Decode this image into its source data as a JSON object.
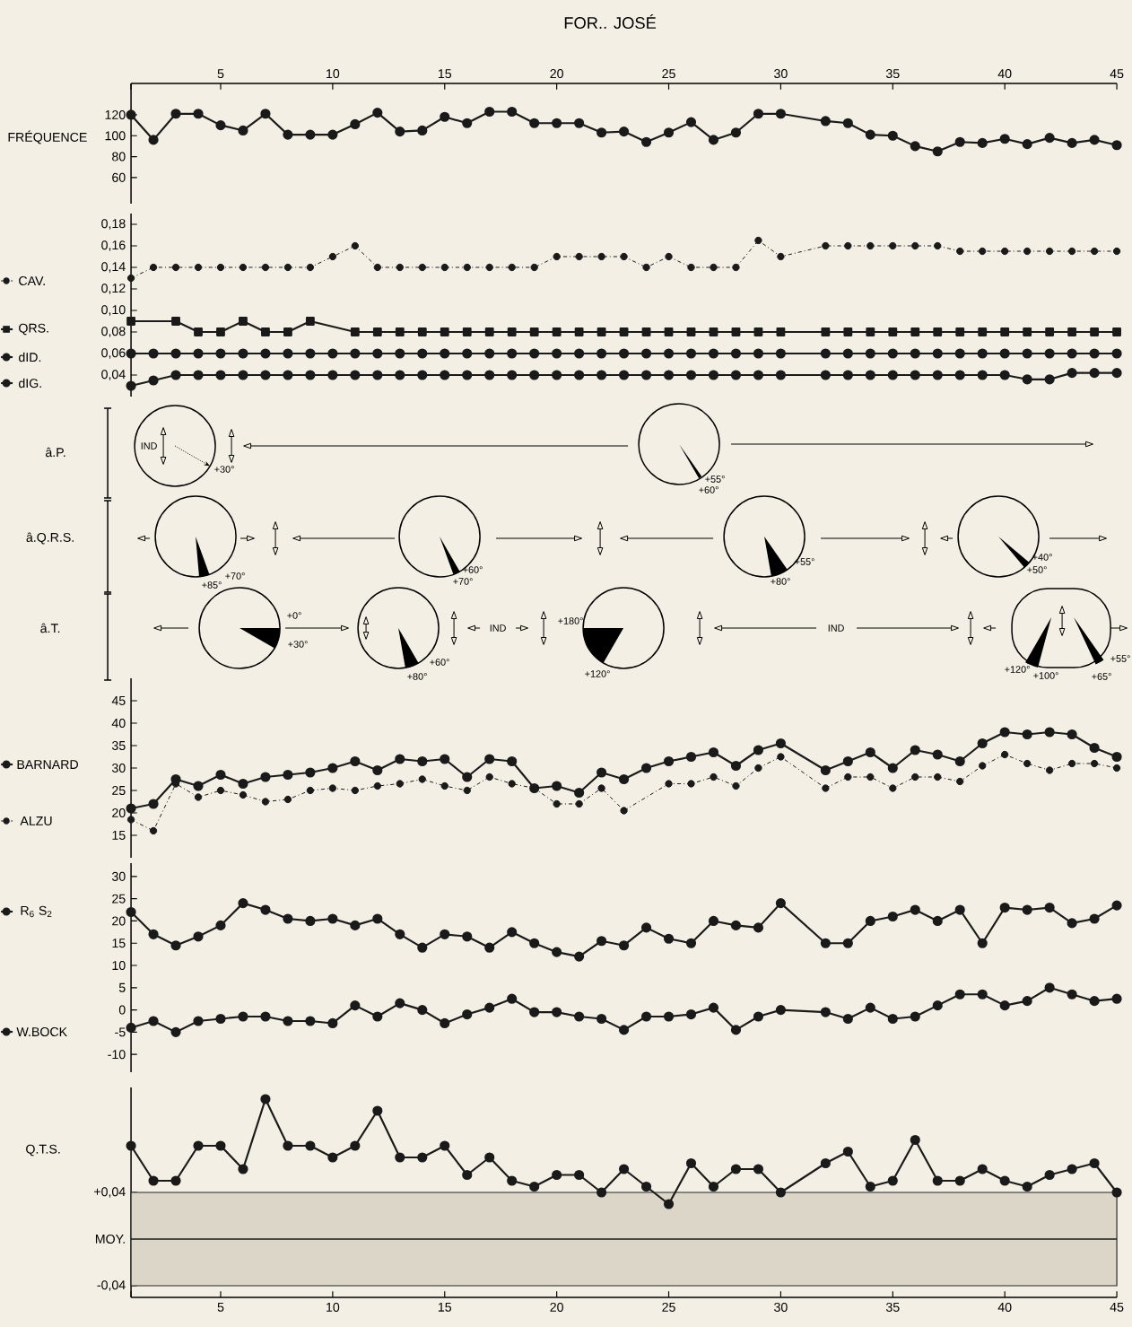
{
  "chart_data": [
    {
      "type": "line",
      "title": "FOR.. JOSÉ",
      "xlim": [
        1,
        45
      ],
      "xticks": [
        {
          "value": 1,
          "label": null
        },
        5,
        10,
        15,
        20,
        25,
        30,
        35,
        40,
        45
      ],
      "ylim": [
        35,
        150
      ],
      "yticks": [
        60,
        80,
        100,
        120
      ],
      "marker": "circle",
      "series": [
        {
          "name": "FRÉQUENCE",
          "color": "#1a1a1a",
          "x": [
            1,
            2,
            3,
            4,
            5,
            6,
            7,
            8,
            9,
            10,
            11,
            12,
            13,
            14,
            15,
            16,
            17,
            18,
            19,
            20,
            21,
            22,
            23,
            24,
            25,
            26,
            27,
            28,
            29,
            30,
            32,
            33,
            34,
            35,
            36,
            37,
            38,
            39,
            40,
            41,
            42,
            43,
            44,
            45
          ],
          "values": [
            120,
            96,
            121,
            121,
            110,
            105,
            121,
            101,
            101,
            101,
            111,
            122,
            104,
            105,
            118,
            112,
            123,
            123,
            112,
            112,
            112,
            103,
            104,
            94,
            103,
            113,
            96,
            103,
            121,
            121,
            114,
            112,
            101,
            100,
            90,
            85,
            94,
            93,
            97,
            92,
            98,
            93,
            96,
            91
          ]
        }
      ]
    },
    {
      "type": "line",
      "xlim": [
        1,
        45
      ],
      "tick_labels": "y",
      "legend": "left",
      "ylim": [
        0.02,
        0.19
      ],
      "yticks": [
        {
          "value": 0.04,
          "label": "0,04"
        },
        {
          "value": 0.06,
          "label": "0,06"
        },
        {
          "value": 0.08,
          "label": "0,08"
        },
        {
          "value": 0.1,
          "label": "0,10"
        },
        {
          "value": 0.12,
          "label": "0,12"
        },
        {
          "value": 0.14,
          "label": "0,14"
        },
        {
          "value": 0.16,
          "label": "0,16"
        },
        {
          "value": 0.18,
          "label": "0,18"
        }
      ],
      "marker": "circle",
      "series": [
        {
          "name": "CAV.",
          "color": "#1a1a1a",
          "line_style": "dotted",
          "x": [
            1,
            2,
            3,
            4,
            5,
            6,
            7,
            8,
            9,
            10,
            11,
            12,
            13,
            14,
            15,
            16,
            17,
            18,
            19,
            20,
            21,
            22,
            23,
            24,
            25,
            26,
            27,
            28,
            29,
            30,
            32,
            33,
            34,
            35,
            36,
            37,
            38,
            39,
            40,
            41,
            42,
            43,
            44,
            45
          ],
          "values": [
            0.13,
            0.14,
            0.14,
            0.14,
            0.14,
            0.14,
            0.14,
            0.14,
            0.14,
            0.15,
            0.16,
            0.14,
            0.14,
            0.14,
            0.14,
            0.14,
            0.14,
            0.14,
            0.14,
            0.15,
            0.15,
            0.15,
            0.15,
            0.14,
            0.15,
            0.14,
            0.14,
            0.14,
            0.165,
            0.15,
            0.16,
            0.16,
            0.16,
            0.16,
            0.16,
            0.16,
            0.155,
            0.155,
            0.155,
            0.155,
            0.155,
            0.155,
            0.155,
            0.155
          ]
        },
        {
          "name": "QRS.",
          "color": "#1a1a1a",
          "marker": "square",
          "x": [
            1,
            3,
            4,
            5,
            6,
            7,
            8,
            9,
            11,
            12,
            13,
            14,
            15,
            16,
            17,
            18,
            19,
            20,
            21,
            22,
            23,
            24,
            25,
            26,
            27,
            28,
            29,
            30,
            32,
            33,
            34,
            35,
            36,
            37,
            38,
            39,
            40,
            41,
            42,
            43,
            44,
            45
          ],
          "values": [
            0.09,
            0.09,
            0.08,
            0.08,
            0.09,
            0.08,
            0.08,
            0.09,
            0.08,
            0.08,
            0.08,
            0.08,
            0.08,
            0.08,
            0.08,
            0.08,
            0.08,
            0.08,
            0.08,
            0.08,
            0.08,
            0.08,
            0.08,
            0.08,
            0.08,
            0.08,
            0.08,
            0.08,
            0.08,
            0.08,
            0.08,
            0.08,
            0.08,
            0.08,
            0.08,
            0.08,
            0.08,
            0.08,
            0.08,
            0.08,
            0.08,
            0.08
          ]
        },
        {
          "name": "dID.",
          "color": "#1a1a1a",
          "x": [
            1,
            2,
            3,
            4,
            5,
            6,
            7,
            8,
            9,
            10,
            11,
            12,
            13,
            14,
            15,
            16,
            17,
            18,
            19,
            20,
            21,
            22,
            23,
            24,
            25,
            26,
            27,
            28,
            29,
            30,
            32,
            33,
            34,
            35,
            36,
            37,
            38,
            39,
            40,
            41,
            42,
            43,
            44,
            45
          ],
          "values": [
            0.06,
            0.06,
            0.06,
            0.06,
            0.06,
            0.06,
            0.06,
            0.06,
            0.06,
            0.06,
            0.06,
            0.06,
            0.06,
            0.06,
            0.06,
            0.06,
            0.06,
            0.06,
            0.06,
            0.06,
            0.06,
            0.06,
            0.06,
            0.06,
            0.06,
            0.06,
            0.06,
            0.06,
            0.06,
            0.06,
            0.06,
            0.06,
            0.06,
            0.06,
            0.06,
            0.06,
            0.06,
            0.06,
            0.06,
            0.06,
            0.06,
            0.06,
            0.06,
            0.06
          ]
        },
        {
          "name": "dIG.",
          "color": "#1a1a1a",
          "x": [
            1,
            2,
            3,
            4,
            5,
            6,
            7,
            8,
            9,
            10,
            11,
            12,
            13,
            14,
            15,
            16,
            17,
            18,
            19,
            20,
            21,
            22,
            23,
            24,
            25,
            26,
            27,
            28,
            29,
            30,
            32,
            33,
            34,
            35,
            36,
            37,
            38,
            39,
            40,
            41,
            42,
            43,
            44,
            45
          ],
          "values": [
            0.03,
            0.035,
            0.04,
            0.04,
            0.04,
            0.04,
            0.04,
            0.04,
            0.04,
            0.04,
            0.04,
            0.04,
            0.04,
            0.04,
            0.04,
            0.04,
            0.04,
            0.04,
            0.04,
            0.04,
            0.04,
            0.04,
            0.04,
            0.04,
            0.04,
            0.04,
            0.04,
            0.04,
            0.04,
            0.04,
            0.04,
            0.04,
            0.04,
            0.04,
            0.04,
            0.04,
            0.04,
            0.04,
            0.04,
            0.036,
            0.036,
            0.042,
            0.042,
            0.042
          ]
        }
      ]
    },
    {
      "type": "other",
      "ylabel": "â.P.",
      "annotations": [
        "IND",
        "+30°",
        "+55°",
        "+60°"
      ]
    },
    {
      "type": "other",
      "ylabel": "â.Q.R.S.",
      "annotations": [
        "+70°",
        "+85°",
        "+60°",
        "+70°",
        "+55°",
        "+80°",
        "+40°",
        "+50°"
      ]
    },
    {
      "type": "other",
      "ylabel": "â.T.",
      "annotations": [
        "+0°",
        "+30°",
        "+60°",
        "+80°",
        "IND",
        "+180°",
        "+120°",
        "IND",
        "+120°",
        "+100°",
        "+55°",
        "+65°"
      ]
    },
    {
      "type": "line",
      "xlim": [
        1,
        45
      ],
      "tick_labels": "y",
      "legend": "left",
      "ylim": [
        10,
        50
      ],
      "yticks": [
        15,
        20,
        25,
        30,
        35,
        40,
        45
      ],
      "marker": "circle",
      "series": [
        {
          "name": "BARNARD",
          "color": "#1a1a1a",
          "x": [
            1,
            2,
            3,
            4,
            5,
            6,
            7,
            8,
            9,
            10,
            11,
            12,
            13,
            14,
            15,
            16,
            17,
            18,
            19,
            20,
            21,
            22,
            23,
            24,
            25,
            26,
            27,
            28,
            29,
            30,
            32,
            33,
            34,
            35,
            36,
            37,
            38,
            39,
            40,
            41,
            42,
            43,
            44,
            45
          ],
          "values": [
            21,
            22,
            27.5,
            26,
            28.5,
            26.5,
            28,
            28.5,
            29,
            30,
            31.5,
            29.5,
            32,
            31.5,
            32,
            28,
            32,
            31.5,
            25.5,
            26,
            24.5,
            29,
            27.5,
            30,
            31.5,
            32.5,
            33.5,
            30.5,
            34,
            35.5,
            29.5,
            31.5,
            33.5,
            30,
            34,
            33,
            31.5,
            35.5,
            38,
            37.5,
            38,
            37.5,
            34.5,
            32.5
          ]
        },
        {
          "name": "ALZU",
          "color": "#1a1a1a",
          "line_style": "dotted",
          "x": [
            1,
            2,
            3,
            4,
            5,
            6,
            7,
            8,
            9,
            10,
            11,
            12,
            13,
            14,
            15,
            16,
            17,
            18,
            19,
            20,
            21,
            22,
            23,
            25,
            26,
            27,
            28,
            29,
            30,
            32,
            33,
            34,
            35,
            36,
            37,
            38,
            39,
            40,
            41,
            42,
            43,
            44,
            45
          ],
          "values": [
            18.5,
            16,
            26.5,
            23.5,
            25,
            24,
            22.5,
            23,
            25,
            25.5,
            25,
            26,
            26.5,
            27.5,
            26,
            25,
            28,
            26.5,
            25.5,
            22,
            22,
            25.5,
            20.5,
            26.5,
            26.5,
            28,
            26,
            30,
            32.5,
            25.5,
            28,
            28,
            25.5,
            28,
            28,
            27,
            30.5,
            33,
            31,
            29.5,
            31,
            31,
            30
          ]
        }
      ]
    },
    {
      "type": "line",
      "xlim": [
        1,
        45
      ],
      "tick_labels": "y",
      "legend": "left",
      "ylim": [
        -14,
        33
      ],
      "yticks": [
        -10,
        -5,
        0,
        5,
        10,
        15,
        20,
        25,
        30
      ],
      "marker": "circle",
      "series": [
        {
          "name": "R$_{6}$ S$_{2}$",
          "color": "#1a1a1a",
          "x": [
            1,
            2,
            3,
            4,
            5,
            6,
            7,
            8,
            9,
            10,
            11,
            12,
            13,
            14,
            15,
            16,
            17,
            18,
            19,
            20,
            21,
            22,
            23,
            24,
            25,
            26,
            27,
            28,
            29,
            30,
            32,
            33,
            34,
            35,
            36,
            37,
            38,
            39,
            40,
            41,
            42,
            43,
            44,
            45
          ],
          "values": [
            22,
            17,
            14.5,
            16.5,
            19,
            24,
            22.5,
            20.5,
            20,
            20.5,
            19,
            20.5,
            17,
            14,
            17,
            16.5,
            14,
            17.5,
            15,
            13,
            12,
            15.5,
            14.5,
            18.5,
            16,
            15,
            20,
            19,
            18.5,
            24,
            15,
            15,
            20,
            21,
            22.5,
            20,
            22.5,
            15,
            23,
            22.5,
            23,
            19.5,
            20.5,
            23.5
          ]
        },
        {
          "name": "W.BOCK",
          "color": "#1a1a1a",
          "x": [
            1,
            2,
            3,
            4,
            5,
            6,
            7,
            8,
            9,
            10,
            11,
            12,
            13,
            14,
            15,
            16,
            17,
            18,
            19,
            20,
            21,
            22,
            23,
            24,
            25,
            26,
            27,
            28,
            29,
            30,
            32,
            33,
            34,
            35,
            36,
            37,
            38,
            39,
            40,
            41,
            42,
            43,
            44,
            45
          ],
          "values": [
            -4,
            -2.5,
            -5,
            -2.5,
            -2,
            -1.5,
            -1.5,
            -2.5,
            -2.5,
            -3,
            1,
            -1.5,
            1.5,
            0,
            -3,
            -1,
            0.5,
            2.5,
            -0.5,
            -0.5,
            -1.5,
            -2,
            -4.5,
            -1.5,
            -1.5,
            -1,
            0.5,
            -4.5,
            -1.5,
            0,
            -0.5,
            -2,
            0.5,
            -2,
            -1.5,
            1,
            3.5,
            3.5,
            1,
            2,
            5,
            3.5,
            2,
            2.5
          ]
        }
      ]
    },
    {
      "type": "line",
      "xlim": [
        1,
        45
      ],
      "xticks": [
        {
          "value": 1,
          "label": null
        },
        5,
        10,
        15,
        20,
        25,
        30,
        35,
        40,
        45
      ],
      "ylim": [
        -0.05,
        0.13
      ],
      "yticks": [
        {
          "value": -0.04,
          "label": "-0,04"
        },
        {
          "value": 0,
          "label": "MOY."
        },
        {
          "value": 0.04,
          "label": "+0,04"
        }
      ],
      "marker": "circle",
      "bands": [
        {
          "axis": "y",
          "from": -0.04,
          "to": 0.04,
          "color": "#dcd6c8"
        }
      ],
      "ref_lines": [
        {
          "axis": "y",
          "value": 0,
          "color": "#1a1a1a"
        }
      ],
      "series": [
        {
          "name": "Q.T.S.",
          "color": "#1a1a1a",
          "x": [
            1,
            2,
            3,
            4,
            5,
            6,
            7,
            8,
            9,
            10,
            11,
            12,
            13,
            14,
            15,
            16,
            17,
            18,
            19,
            20,
            21,
            22,
            23,
            24,
            25,
            26,
            27,
            28,
            29,
            30,
            32,
            33,
            34,
            35,
            36,
            37,
            38,
            39,
            40,
            41,
            42,
            43,
            44,
            45
          ],
          "values": [
            0.08,
            0.05,
            0.05,
            0.08,
            0.08,
            0.06,
            0.12,
            0.08,
            0.08,
            0.07,
            0.08,
            0.11,
            0.07,
            0.07,
            0.08,
            0.055,
            0.07,
            0.05,
            0.045,
            0.055,
            0.055,
            0.04,
            0.06,
            0.045,
            0.03,
            0.065,
            0.045,
            0.06,
            0.06,
            0.04,
            0.065,
            0.075,
            0.045,
            0.05,
            0.085,
            0.05,
            0.05,
            0.06,
            0.05,
            0.045,
            0.055,
            0.06,
            0.065,
            0.04
          ]
        }
      ]
    }
  ]
}
